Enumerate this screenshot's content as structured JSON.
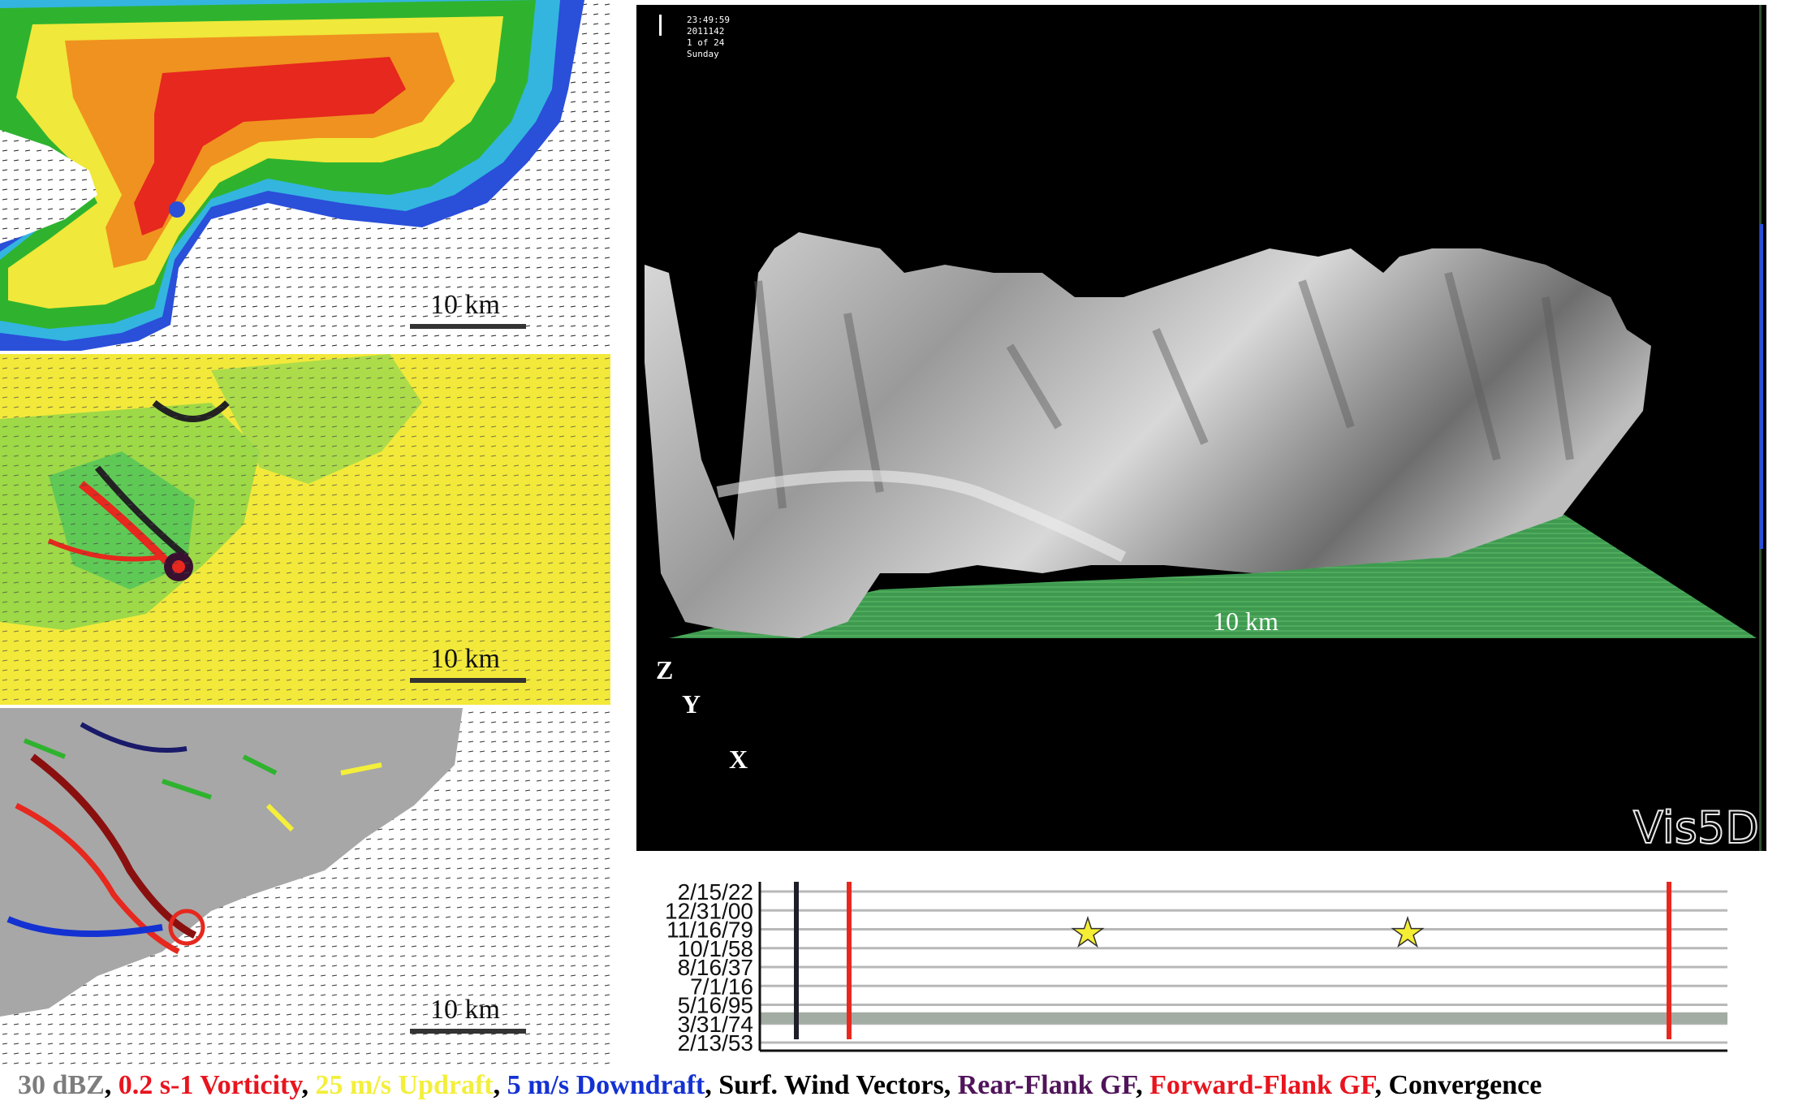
{
  "panels": [
    {
      "name": "reflectivity-panel",
      "scale_label": "10 km"
    },
    {
      "name": "vorticity-panel",
      "scale_label": "10 km"
    },
    {
      "name": "gust-front-panel",
      "scale_label": "10 km"
    }
  ],
  "vis5d": {
    "hud": {
      "time": "23:49:59",
      "date": "2011142",
      "step": "1 of 24",
      "day": "Sunday"
    },
    "scale_label": "10 km",
    "axes": {
      "z": "Z",
      "y": "Y",
      "x": "X"
    },
    "logo": "Vis5D"
  },
  "timeline": {
    "y_tick_labels": [
      "2/15/22",
      "12/31/00",
      "11/16/79",
      "10/1/58",
      "8/16/37",
      "7/1/16",
      "5/16/95",
      "3/31/74",
      "2/13/53"
    ],
    "star_glyph": "★",
    "colors": {
      "star": "#f6ee34",
      "red_marker": "#e8281e",
      "black_marker": "#1e1e28",
      "band": "#a2aca2"
    }
  },
  "legend": [
    {
      "text": "30 dBZ",
      "color": "#7d7d7d"
    },
    {
      "text": ", ",
      "color": "#000000"
    },
    {
      "text": "0.2 s-1 Vorticity",
      "color": "#e8141e"
    },
    {
      "text": ", ",
      "color": "#000000"
    },
    {
      "text": "25 m/s Updraft",
      "color": "#f3ef3a"
    },
    {
      "text": ", ",
      "color": "#000000"
    },
    {
      "text": "5 m/s Downdraft",
      "color": "#1432d2"
    },
    {
      "text": ", ",
      "color": "#000000"
    },
    {
      "text": "Surf. Wind Vectors",
      "color": "#000000"
    },
    {
      "text": ", ",
      "color": "#000000"
    },
    {
      "text": "Rear-Flank GF",
      "color": "#50145a"
    },
    {
      "text": ", ",
      "color": "#000000"
    },
    {
      "text": "Forward-Flank GF",
      "color": "#e8141e"
    },
    {
      "text": ", ",
      "color": "#000000"
    },
    {
      "text": "Convergence",
      "color": "#000000"
    }
  ]
}
